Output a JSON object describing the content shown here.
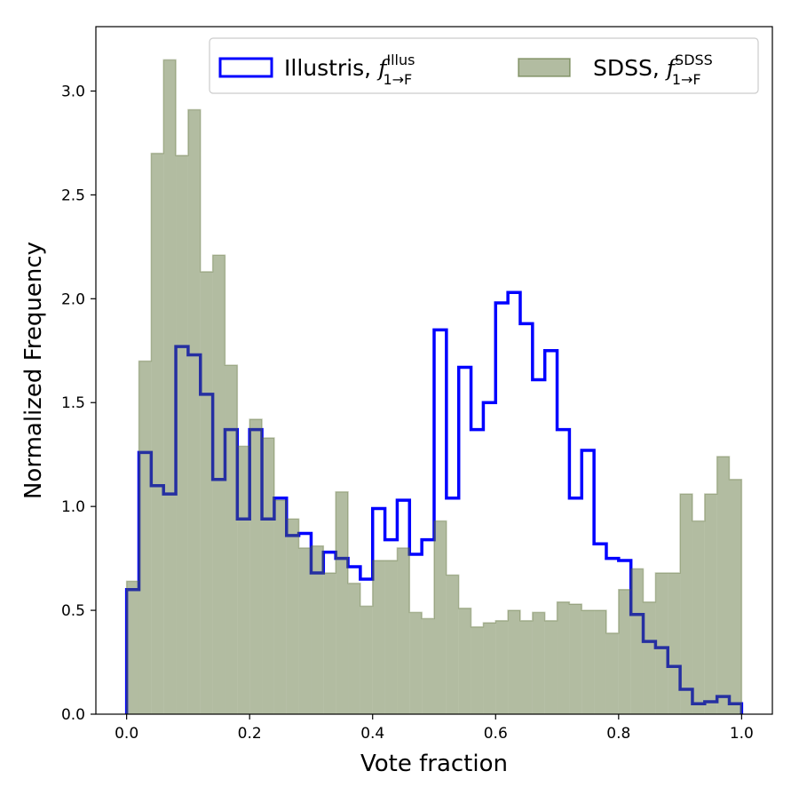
{
  "chart_data": {
    "type": "histogram",
    "xlabel": "Vote fraction",
    "ylabel": "Normalized Frequency",
    "xlim": [
      -0.05,
      1.05
    ],
    "ylim": [
      0,
      3.31
    ],
    "xticks": [
      "0.0",
      "0.2",
      "0.4",
      "0.6",
      "0.8",
      "1.0"
    ],
    "yticks": [
      "0.0",
      "0.5",
      "1.0",
      "1.5",
      "2.0",
      "2.5",
      "3.0"
    ],
    "grid": false,
    "legend_position": "top-right",
    "bin_edges_start": 0.0,
    "bin_width": 0.02,
    "series": [
      {
        "name": "Illustris, ",
        "name_math": {
          "base": "f",
          "sub": "1→F",
          "sup": "Illus"
        },
        "style": "step",
        "color": "#0000ff",
        "values": [
          0.6,
          1.26,
          1.1,
          1.06,
          1.77,
          1.73,
          1.54,
          1.13,
          1.37,
          0.94,
          1.37,
          0.94,
          1.04,
          0.86,
          0.87,
          0.68,
          0.78,
          0.75,
          0.71,
          0.65,
          0.99,
          0.84,
          1.03,
          0.77,
          0.84,
          1.85,
          1.04,
          1.67,
          1.37,
          1.5,
          1.98,
          2.03,
          1.88,
          1.61,
          1.75,
          1.37,
          1.04,
          1.27,
          0.82,
          0.75,
          0.74,
          0.48,
          0.35,
          0.32,
          0.23,
          0.12,
          0.05,
          0.06,
          0.085,
          0.05
        ]
      },
      {
        "name": "SDSS, ",
        "name_math": {
          "base": "f",
          "sub": "1→F",
          "sup": "SDSS"
        },
        "style": "filled",
        "color": "#556b2f",
        "values": [
          0.64,
          1.7,
          2.7,
          3.15,
          2.69,
          2.91,
          2.13,
          2.21,
          1.68,
          1.29,
          1.42,
          1.33,
          1.03,
          0.94,
          0.8,
          0.81,
          0.68,
          1.07,
          0.63,
          0.52,
          0.74,
          0.74,
          0.8,
          0.49,
          0.46,
          0.93,
          0.67,
          0.51,
          0.42,
          0.44,
          0.45,
          0.5,
          0.45,
          0.49,
          0.45,
          0.54,
          0.53,
          0.5,
          0.5,
          0.39,
          0.6,
          0.7,
          0.54,
          0.68,
          0.68,
          1.06,
          0.93,
          1.06,
          1.24,
          1.13
        ]
      }
    ]
  }
}
